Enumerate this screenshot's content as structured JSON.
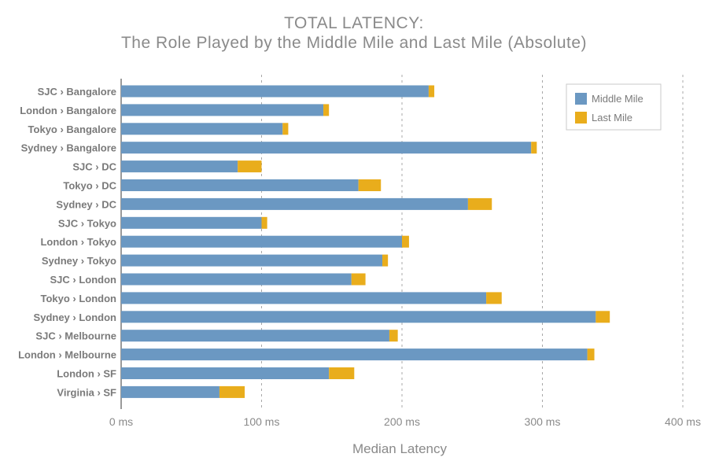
{
  "chart_data": {
    "type": "bar",
    "orientation": "horizontal",
    "stacked": true,
    "title": "TOTAL LATENCY:",
    "subtitle": "The Role Played by the Middle Mile and Last Mile (Absolute)",
    "xlabel": "Median Latency",
    "ylabel": "",
    "xlim": [
      0,
      400
    ],
    "x_ticks": [
      0,
      100,
      200,
      300,
      400
    ],
    "x_tick_labels": [
      "0 ms",
      "100 ms",
      "200 ms",
      "300 ms",
      "400 ms"
    ],
    "grid": "vertical dashed",
    "legend_position": "top-right",
    "categories": [
      "SJC › Bangalore",
      "London › Bangalore",
      "Tokyo › Bangalore",
      "Sydney › Bangalore",
      "SJC › DC",
      "Tokyo › DC",
      "Sydney › DC",
      "SJC › Tokyo",
      "London › Tokyo",
      "Sydney › Tokyo",
      "SJC › London",
      "Tokyo › London",
      "Sydney › London",
      "SJC › Melbourne",
      "London › Melbourne",
      "London › SF",
      "Virginia › SF"
    ],
    "series": [
      {
        "name": "Middle Mile",
        "color": "#6b98c2",
        "values": [
          219,
          144,
          115,
          292,
          83,
          169,
          247,
          100,
          200,
          186,
          164,
          260,
          338,
          191,
          332,
          148,
          70
        ]
      },
      {
        "name": "Last Mile",
        "color": "#e9ad1c",
        "values": [
          4,
          4,
          4,
          4,
          17,
          16,
          17,
          4,
          5,
          4,
          10,
          11,
          10,
          6,
          5,
          18,
          18
        ]
      }
    ]
  }
}
